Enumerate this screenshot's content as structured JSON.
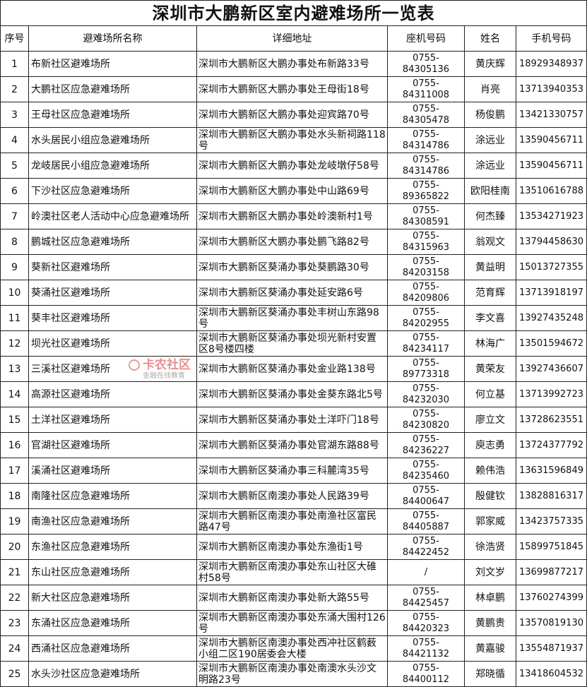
{
  "title": "深圳市大鹏新区室内避难场所一览表",
  "headers": [
    "序号",
    "避难场所名称",
    "详细地址",
    "座机号码",
    "姓名",
    "手机号码"
  ],
  "rows": [
    [
      "1",
      "布新社区避难场所",
      "深圳市大鹏新区大鹏办事处布新路33号",
      "0755-84305136",
      "黄庆辉",
      "18929348937"
    ],
    [
      "2",
      "大鹏社区应急避难场所",
      "深圳市大鹏新区大鹏办事处王母街18号",
      "0755-84311008",
      "肖亮",
      "13713940353"
    ],
    [
      "3",
      "王母社区应急避难场所",
      "深圳市大鹏新区大鹏办事处迎宾路70号",
      "0755-84305478",
      "杨俊鹏",
      "13421330757"
    ],
    [
      "4",
      "水头居民小组应急避难场所",
      "深圳市大鹏新区大鹏办事处水头新祠路118号",
      "0755-84314786",
      "涂远业",
      "13590456711"
    ],
    [
      "5",
      "龙岐居民小组应急避难场所",
      "深圳市大鹏新区大鹏办事处龙岐墩仔58号",
      "0755-84314786",
      "涂远业",
      "13590456711"
    ],
    [
      "6",
      "下沙社区应急避难场所",
      "深圳市大鹏新区大鹏办事处中山路69号",
      "0755-89365822",
      "欧阳桂南",
      "13510616788"
    ],
    [
      "7",
      "岭澳社区老人活动中心应急避难场所",
      "深圳市大鹏新区大鹏办事处岭澳新村1号",
      "0755-84308591",
      "何杰臻",
      "13534271923"
    ],
    [
      "8",
      "鹏城社区应急避难场所",
      "深圳市大鹏新区大鹏办事处鹏飞路82号",
      "0755-84315963",
      "翁观文",
      "13794458630"
    ],
    [
      "9",
      "葵新社区避难场所",
      "深圳市大鹏新区葵涌办事处葵鹏路30号",
      "0755-84203158",
      "黄益明",
      "15013727355"
    ],
    [
      "10",
      "葵涌社区避难场所",
      "深圳市大鹏新区葵涌办事处延安路6号",
      "0755-84209806",
      "范育辉",
      "13713918197"
    ],
    [
      "11",
      "葵丰社区避难场所",
      "深圳市大鹏新区葵涌办事处丰树山东路98号",
      "0755-84202955",
      "李文喜",
      "13927435248"
    ],
    [
      "12",
      "坝光社区避难场所",
      "深圳市大鹏新区葵涌办事处坝光新村安置区8号楼四楼",
      "0755-84234117",
      "林海广",
      "13501594672"
    ],
    [
      "13",
      "三溪社区避难场所",
      "深圳市大鹏新区葵涌办事处金业路138号",
      "0755-89773318",
      "黄荣友",
      "13927436607"
    ],
    [
      "14",
      "高源社区避难场所",
      "深圳市大鹏新区葵涌办事处金葵东路北5号",
      "0755-84232030",
      "何立基",
      "13713992723"
    ],
    [
      "15",
      "土洋社区避难场所",
      "深圳市大鹏新区葵涌办事处土洋吓门18号",
      "0755-84230820",
      "廖立文",
      "13728623551"
    ],
    [
      "16",
      "官湖社区避难场所",
      "深圳市大鹏新区葵涌办事处官湖东路88号",
      "0755-84236227",
      "庾志勇",
      "13724377792"
    ],
    [
      "17",
      "溪涌社区避难场所",
      "深圳市大鹏新区葵涌办事三科麓湾35号",
      "0755-84235460",
      "赖伟浩",
      "13631596849"
    ],
    [
      "18",
      "南隆社区应急避难场所",
      "深圳市大鹏新区南澳办事处人民路39号",
      "0755-84400647",
      "殷健钦",
      "13828816317"
    ],
    [
      "19",
      "南渔社区应急避难场所",
      "深圳市大鹏新区南澳办事处南渔社区富民路47号",
      "0755-84405887",
      "郭家威",
      "13423757335"
    ],
    [
      "20",
      "东渔社区应急避难场所",
      "深圳市大鹏新区南澳办事处东渔街1号",
      "0755-84422452",
      "徐浩贤",
      "15899751845"
    ],
    [
      "21",
      "东山社区应急避难场所",
      "深圳市大鹏新区南澳办事处东山社区大碓村58号",
      "/",
      "刘文岁",
      "13699877217"
    ],
    [
      "22",
      "新大社区应急避难场所",
      "深圳市大鹏新区南澳办事处新大路55号",
      "0755-84425457",
      "林卓鹏",
      "13760274399"
    ],
    [
      "23",
      "东涌社区应急避难场所",
      "深圳市大鹏新区南澳办事处东涌大围村126号",
      "0755-84420323",
      "黄鹏贵",
      "13570819130"
    ],
    [
      "24",
      "西涌社区应急避难场所",
      "深圳市大鹏新区南澳办事处西冲社区鹤薮小组二区190居委会大楼",
      "0755-84421132",
      "黄嘉骏",
      "13554871937"
    ],
    [
      "25",
      "水头沙社区应急避难场所",
      "深圳市大鹏新区南澳办事处南澳水头沙文明路23号",
      "0755-84400112",
      "郑晓循",
      "13418604532"
    ]
  ],
  "watermark": {
    "text": "卡农社区",
    "subtext": "金融在线教育"
  }
}
